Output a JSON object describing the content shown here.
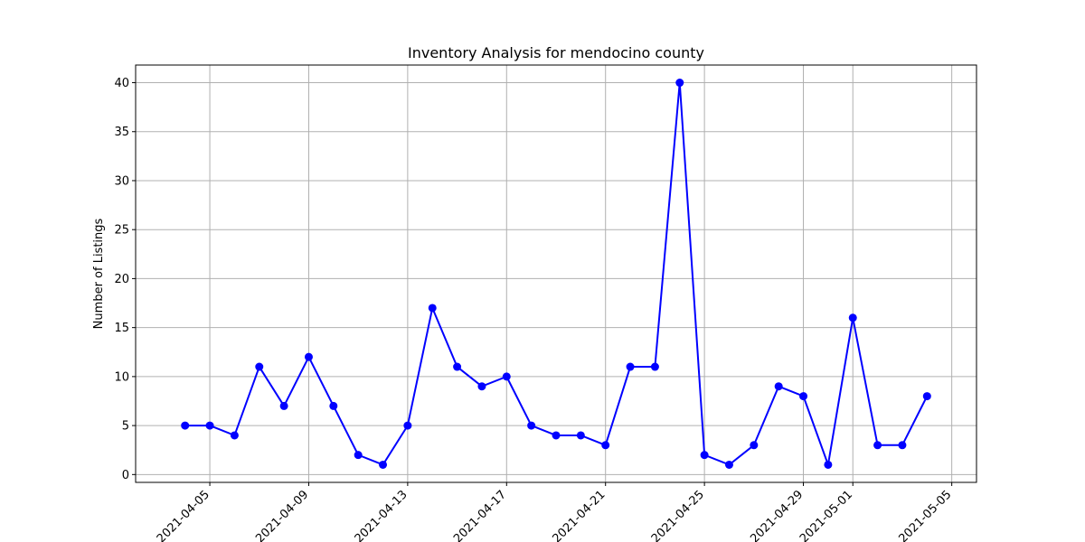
{
  "chart_data": {
    "type": "line",
    "title": "Inventory Analysis for mendocino county",
    "xlabel": "",
    "ylabel": "Number of Listings",
    "grid": true,
    "x_type": "date",
    "xlim": [
      "2021-04-02",
      "2021-05-06"
    ],
    "ylim": [
      -0.8,
      41.8
    ],
    "x_ticks": [
      "2021-04-05",
      "2021-04-09",
      "2021-04-13",
      "2021-04-17",
      "2021-04-21",
      "2021-04-25",
      "2021-04-29",
      "2021-05-01",
      "2021-05-05"
    ],
    "y_ticks": [
      0,
      5,
      10,
      15,
      20,
      25,
      30,
      35,
      40
    ],
    "line_color": "#0000ff",
    "marker": "circle",
    "series": [
      {
        "x": [
          "2021-04-04",
          "2021-04-05",
          "2021-04-06",
          "2021-04-07",
          "2021-04-08",
          "2021-04-09",
          "2021-04-10",
          "2021-04-11",
          "2021-04-12",
          "2021-04-13",
          "2021-04-14",
          "2021-04-15",
          "2021-04-16",
          "2021-04-17",
          "2021-04-18",
          "2021-04-19",
          "2021-04-20",
          "2021-04-21",
          "2021-04-22",
          "2021-04-23",
          "2021-04-24",
          "2021-04-25",
          "2021-04-26",
          "2021-04-27",
          "2021-04-28",
          "2021-04-29",
          "2021-04-30",
          "2021-05-01",
          "2021-05-02",
          "2021-05-03",
          "2021-05-04"
        ],
        "values": [
          5,
          5,
          4,
          11,
          7,
          12,
          7,
          2,
          1,
          5,
          17,
          11,
          9,
          10,
          5,
          4,
          4,
          3,
          11,
          11,
          40,
          2,
          1,
          3,
          9,
          8,
          1,
          16,
          3,
          3,
          8
        ]
      }
    ]
  }
}
